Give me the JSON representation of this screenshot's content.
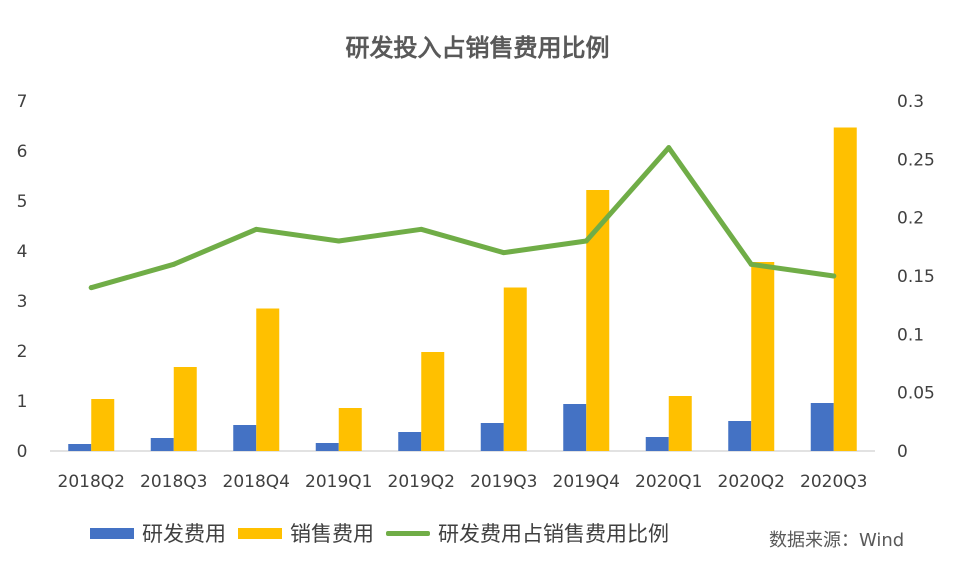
{
  "title": "研发投入占销售费用比例",
  "source": "数据来源：Wind",
  "chart_data": {
    "type": "bar",
    "title": "研发投入占销售费用比例",
    "categories": [
      "2018Q2",
      "2018Q3",
      "2018Q4",
      "2019Q1",
      "2019Q2",
      "2019Q3",
      "2019Q4",
      "2020Q1",
      "2020Q2",
      "2020Q3"
    ],
    "series": [
      {
        "name": "研发费用",
        "type": "bar",
        "axis": "left",
        "color": "#4472C4",
        "values": [
          0.14,
          0.26,
          0.52,
          0.16,
          0.38,
          0.56,
          0.94,
          0.28,
          0.6,
          0.96
        ]
      },
      {
        "name": "销售费用",
        "type": "bar",
        "axis": "left",
        "color": "#FFC000",
        "values": [
          1.04,
          1.68,
          2.85,
          0.86,
          1.98,
          3.27,
          5.22,
          1.1,
          3.78,
          6.47
        ]
      },
      {
        "name": "研发费用占销售费用比例",
        "type": "line",
        "axis": "right",
        "color": "#70AD47",
        "values": [
          0.14,
          0.16,
          0.19,
          0.18,
          0.19,
          0.17,
          0.18,
          0.26,
          0.16,
          0.15
        ]
      }
    ],
    "y_left": {
      "ylim": [
        0,
        7
      ],
      "ticks": [
        "0",
        "1",
        "2",
        "3",
        "4",
        "5",
        "6",
        "7"
      ]
    },
    "y_right": {
      "ylim": [
        0,
        0.3
      ],
      "ticks": [
        "0",
        "0.05",
        "0.1",
        "0.15",
        "0.2",
        "0.25",
        "0.3"
      ]
    },
    "grid": false,
    "legend_position": "bottom"
  }
}
